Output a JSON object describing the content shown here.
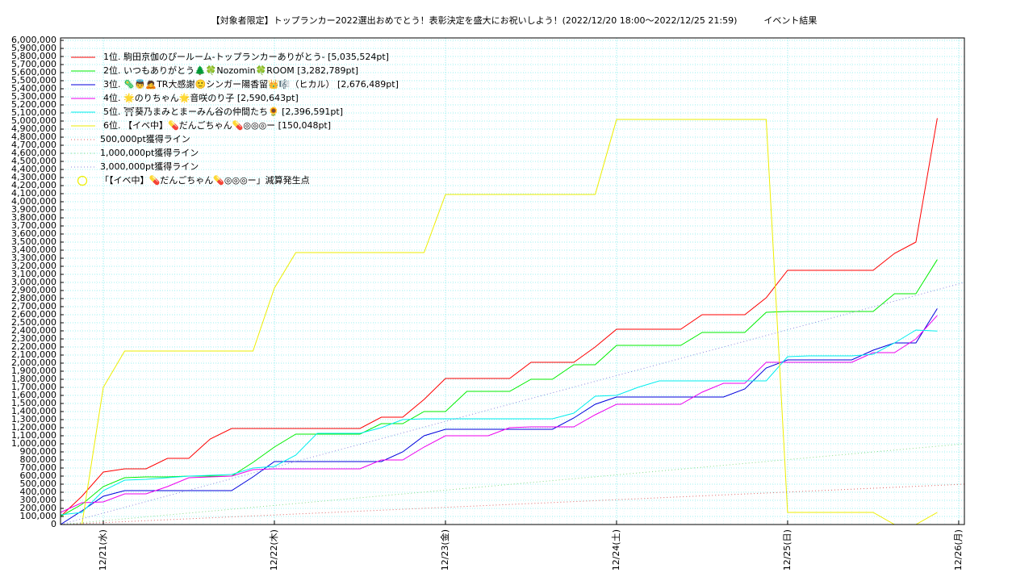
{
  "chart_data": {
    "type": "line",
    "title": "【対象者限定】トップランカー2022選出おめでとう！表彰決定を盛大にお祝いしよう！(2022/12/20 18:00〜2022/12/25 21:59)　　　イベント結果",
    "x": [
      0,
      3,
      6,
      9,
      12,
      15,
      18,
      21,
      24,
      27,
      30,
      33,
      36,
      39,
      42,
      45,
      48,
      51,
      54,
      57,
      60,
      63,
      66,
      69,
      72,
      75,
      78,
      81,
      84,
      87,
      90,
      93,
      96,
      99,
      102,
      105,
      108,
      111,
      114,
      117,
      120,
      123
    ],
    "xlim": [
      0,
      126.8
    ],
    "xticks": [
      {
        "value": 6,
        "label": "12/21(水)"
      },
      {
        "value": 30,
        "label": "12/22(木)"
      },
      {
        "value": 54,
        "label": "12/23(金)"
      },
      {
        "value": 78,
        "label": "12/24(土)"
      },
      {
        "value": 102,
        "label": "12/25(日)"
      },
      {
        "value": 126,
        "label": "12/26(月)"
      }
    ],
    "ylim": [
      0,
      6000000
    ],
    "yticks": [
      0,
      {
        "value": 100000,
        "label": "100,000"
      },
      {
        "value": 200000,
        "label": "200,000"
      },
      {
        "value": 300000,
        "label": "300,000"
      },
      {
        "value": 400000,
        "label": "400,000"
      },
      {
        "value": 500000,
        "label": "500,000"
      },
      {
        "value": 600000,
        "label": "600,000"
      },
      {
        "value": 700000,
        "label": "700,000"
      },
      {
        "value": 800000,
        "label": "800,000"
      },
      {
        "value": 900000,
        "label": "900,000"
      },
      {
        "value": 1000000,
        "label": "1,000,000"
      },
      {
        "value": 1100000,
        "label": "1,100,000"
      },
      {
        "value": 1200000,
        "label": "1,200,000"
      },
      {
        "value": 1300000,
        "label": "1,300,000"
      },
      {
        "value": 1400000,
        "label": "1,400,000"
      },
      {
        "value": 1500000,
        "label": "1,500,000"
      },
      {
        "value": 1600000,
        "label": "1,600,000"
      },
      {
        "value": 1700000,
        "label": "1,700,000"
      },
      {
        "value": 1800000,
        "label": "1,800,000"
      },
      {
        "value": 1900000,
        "label": "1,900,000"
      },
      {
        "value": 2000000,
        "label": "2,000,000"
      },
      {
        "value": 2100000,
        "label": "2,100,000"
      },
      {
        "value": 2200000,
        "label": "2,200,000"
      },
      {
        "value": 2300000,
        "label": "2,300,000"
      },
      {
        "value": 2400000,
        "label": "2,400,000"
      },
      {
        "value": 2500000,
        "label": "2,500,000"
      },
      {
        "value": 2600000,
        "label": "2,600,000"
      },
      {
        "value": 2700000,
        "label": "2,700,000"
      },
      {
        "value": 2800000,
        "label": "2,800,000"
      },
      {
        "value": 2900000,
        "label": "2,900,000"
      },
      {
        "value": 3000000,
        "label": "3,000,000"
      },
      {
        "value": 3100000,
        "label": "3,100,000"
      },
      {
        "value": 3200000,
        "label": "3,200,000"
      },
      {
        "value": 3300000,
        "label": "3,300,000"
      },
      {
        "value": 3400000,
        "label": "3,400,000"
      },
      {
        "value": 3500000,
        "label": "3,500,000"
      },
      {
        "value": 3600000,
        "label": "3,600,000"
      },
      {
        "value": 3700000,
        "label": "3,700,000"
      },
      {
        "value": 3800000,
        "label": "3,800,000"
      },
      {
        "value": 3900000,
        "label": "3,900,000"
      },
      {
        "value": 4000000,
        "label": "4,000,000"
      },
      {
        "value": 4100000,
        "label": "4,100,000"
      },
      {
        "value": 4200000,
        "label": "4,200,000"
      },
      {
        "value": 4300000,
        "label": "4,300,000"
      },
      {
        "value": 4400000,
        "label": "4,400,000"
      },
      {
        "value": 4500000,
        "label": "4,500,000"
      },
      {
        "value": 4600000,
        "label": "4,600,000"
      },
      {
        "value": 4700000,
        "label": "4,700,000"
      },
      {
        "value": 4800000,
        "label": "4,800,000"
      },
      {
        "value": 4900000,
        "label": "4,900,000"
      },
      {
        "value": 5000000,
        "label": "5,000,000"
      },
      {
        "value": 5100000,
        "label": "5,100,000"
      },
      {
        "value": 5200000,
        "label": "5,200,000"
      },
      {
        "value": 5300000,
        "label": "5,300,000"
      },
      {
        "value": 5400000,
        "label": "5,400,000"
      },
      {
        "value": 5500000,
        "label": "5,500,000"
      },
      {
        "value": 5600000,
        "label": "5,600,000"
      },
      {
        "value": 5700000,
        "label": "5,700,000"
      },
      {
        "value": 5800000,
        "label": "5,800,000"
      },
      {
        "value": 5900000,
        "label": "5,900,000"
      },
      {
        "value": 6000000,
        "label": "6,000,000"
      }
    ],
    "grid": true,
    "series": [
      {
        "name": "1位. 駒田京伽のぴールーム-トップランカーありがとう- [5,035,524pt]",
        "color": "#ff0000",
        "values": [
          100000,
          350000,
          650000,
          690000,
          690000,
          820000,
          820000,
          1060000,
          1190000,
          1190000,
          1190000,
          1190000,
          1190000,
          1190000,
          1190000,
          1330000,
          1330000,
          1550000,
          1810000,
          1810000,
          1810000,
          1810000,
          2010000,
          2010000,
          2010000,
          2200000,
          2420000,
          2420000,
          2420000,
          2420000,
          2600000,
          2600000,
          2600000,
          2810000,
          3150000,
          3150000,
          3150000,
          3150000,
          3150000,
          3360000,
          3500000,
          5035524
        ]
      },
      {
        "name": "2位. いつもありがとう🌲🍀Nozomin🍀ROOM [3,282,789pt]",
        "color": "#00ee00",
        "values": [
          100000,
          250000,
          470000,
          580000,
          590000,
          590000,
          600000,
          600000,
          600000,
          770000,
          960000,
          1120000,
          1120000,
          1120000,
          1120000,
          1250000,
          1250000,
          1400000,
          1400000,
          1650000,
          1650000,
          1650000,
          1800000,
          1800000,
          1980000,
          1980000,
          2220000,
          2220000,
          2220000,
          2220000,
          2380000,
          2380000,
          2380000,
          2630000,
          2640000,
          2640000,
          2640000,
          2640000,
          2640000,
          2860000,
          2860000,
          3282789
        ]
      },
      {
        "name": "3位. 🦠👼🙇TR大感謝🙂シンガー陽香留👑🎼（ヒカル） [2,676,489pt]",
        "color": "#0000dd",
        "values": [
          0,
          170000,
          350000,
          420000,
          420000,
          420000,
          420000,
          420000,
          420000,
          590000,
          780000,
          780000,
          780000,
          780000,
          780000,
          780000,
          900000,
          1100000,
          1180000,
          1180000,
          1180000,
          1180000,
          1180000,
          1180000,
          1320000,
          1490000,
          1580000,
          1580000,
          1580000,
          1580000,
          1580000,
          1580000,
          1680000,
          1940000,
          2040000,
          2040000,
          2040000,
          2040000,
          2160000,
          2250000,
          2250000,
          2676489
        ]
      },
      {
        "name": "4位. 🌟のりちゃん🌟音咲のり子 [2,590,643pt]",
        "color": "#ee00ee",
        "values": [
          150000,
          270000,
          280000,
          380000,
          380000,
          470000,
          580000,
          590000,
          600000,
          680000,
          690000,
          690000,
          690000,
          690000,
          690000,
          800000,
          800000,
          960000,
          1100000,
          1100000,
          1100000,
          1200000,
          1210000,
          1210000,
          1210000,
          1360000,
          1490000,
          1490000,
          1490000,
          1490000,
          1640000,
          1750000,
          1750000,
          2010000,
          2010000,
          2010000,
          2010000,
          2010000,
          2130000,
          2130000,
          2300000,
          2590643
        ]
      },
      {
        "name": "5位. ⛩葵乃まみとまーみん谷の仲間たち🌻 [2,396,591pt]",
        "color": "#00eeee",
        "values": [
          120000,
          150000,
          420000,
          550000,
          560000,
          580000,
          600000,
          610000,
          620000,
          700000,
          720000,
          860000,
          1130000,
          1130000,
          1130000,
          1200000,
          1300000,
          1310000,
          1310000,
          1310000,
          1310000,
          1310000,
          1310000,
          1310000,
          1380000,
          1590000,
          1600000,
          1700000,
          1780000,
          1780000,
          1780000,
          1780000,
          1780000,
          1780000,
          2080000,
          2090000,
          2090000,
          2090000,
          2110000,
          2250000,
          2410000,
          2396591
        ]
      },
      {
        "name": "6位. 【イベ中】💊だんごちゃん💊◎◎◎ー [150,048pt]",
        "color": "#eeee00",
        "values": [
          0,
          0,
          1700000,
          2150000,
          2150000,
          2150000,
          2150000,
          2150000,
          2150000,
          2150000,
          2930000,
          3370000,
          3370000,
          3370000,
          3370000,
          3370000,
          3370000,
          3370000,
          4090000,
          4090000,
          4090000,
          4090000,
          4090000,
          4090000,
          4090000,
          4090000,
          5020000,
          5020000,
          5020000,
          5020000,
          5020000,
          5020000,
          5020000,
          5020000,
          150000,
          150000,
          150000,
          150000,
          150000,
          0,
          0,
          150048
        ]
      },
      {
        "name": "500,000pt獲得ライン",
        "color": "#dd6666",
        "dash": true,
        "x": [
          0,
          126.8
        ],
        "values": [
          0,
          500000
        ]
      },
      {
        "name": "1,000,000pt獲得ライン",
        "color": "#88dd88",
        "dash": true,
        "x": [
          0,
          126.8
        ],
        "values": [
          0,
          1000000
        ]
      },
      {
        "name": "3,000,000pt獲得ライン",
        "color": "#8888dd",
        "dash": true,
        "x": [
          0,
          126.8
        ],
        "values": [
          0,
          3000000
        ]
      }
    ],
    "marker_legend": {
      "name": "「【イベ中】💊だんごちゃん💊◎◎◎ー」減算発生点",
      "color": "#eeee00"
    }
  }
}
